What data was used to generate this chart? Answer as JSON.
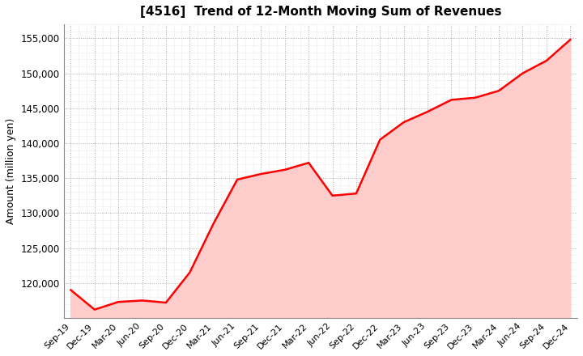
{
  "title": "[4516]  Trend of 12-Month Moving Sum of Revenues",
  "ylabel": "Amount (million yen)",
  "line_color": "#ff0000",
  "fill_color": "#ffcccc",
  "background_color": "#ffffff",
  "plot_bg_color": "#ffffff",
  "grid_color": "#aaaaaa",
  "ylim": [
    115000,
    157000
  ],
  "yticks": [
    120000,
    125000,
    130000,
    135000,
    140000,
    145000,
    150000,
    155000
  ],
  "x_labels": [
    "Sep-19",
    "Dec-19",
    "Mar-20",
    "Jun-20",
    "Sep-20",
    "Dec-20",
    "Mar-21",
    "Jun-21",
    "Sep-21",
    "Dec-21",
    "Mar-22",
    "Jun-22",
    "Sep-22",
    "Dec-22",
    "Mar-23",
    "Jun-23",
    "Sep-23",
    "Dec-23",
    "Mar-24",
    "Jun-24",
    "Sep-24",
    "Dec-24"
  ],
  "values": [
    119000,
    116200,
    117300,
    117500,
    117200,
    121500,
    128500,
    134800,
    135600,
    136200,
    137200,
    132500,
    132800,
    140500,
    143000,
    144500,
    146200,
    146500,
    147500,
    150000,
    151800,
    154800
  ]
}
